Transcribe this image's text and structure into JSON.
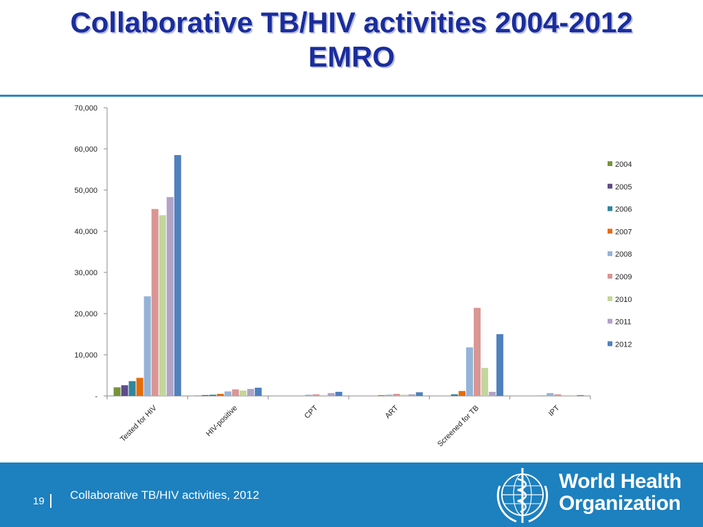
{
  "title": {
    "line1": "Collaborative TB/HIV activities 2004-2012",
    "line2": "EMRO"
  },
  "footer": {
    "page_number": "19",
    "text": "Collaborative TB/HIV activities, 2012",
    "logo_line1": "World Health",
    "logo_line2": "Organization"
  },
  "colors": {
    "title": "#1a2d9c",
    "accent_rule": "#2d86c4",
    "footer_bg": "#1d80bf"
  },
  "chart_data": {
    "type": "bar",
    "categories": [
      "Tested for HIV",
      "HIV-positive",
      "CPT",
      "ART",
      "Screened for TB",
      "IPT"
    ],
    "ylim": [
      0,
      70000
    ],
    "yticks": [
      0,
      10000,
      20000,
      30000,
      40000,
      50000,
      60000,
      70000
    ],
    "ytick_labels": [
      "-",
      "10,000",
      "20,000",
      "30,000",
      "40,000",
      "50,000",
      "60,000",
      "70,000"
    ],
    "legend_position": "right",
    "grid": false,
    "series": [
      {
        "name": "2004",
        "color": "#77933c",
        "values": [
          2100,
          100,
          0,
          0,
          0,
          0
        ]
      },
      {
        "name": "2005",
        "color": "#5f4b8b",
        "values": [
          2600,
          200,
          0,
          0,
          0,
          0
        ]
      },
      {
        "name": "2006",
        "color": "#31859c",
        "values": [
          3600,
          300,
          0,
          0,
          400,
          0
        ]
      },
      {
        "name": "2007",
        "color": "#e46c0a",
        "values": [
          4400,
          500,
          0,
          200,
          1200,
          100
        ]
      },
      {
        "name": "2008",
        "color": "#95b3d7",
        "values": [
          24200,
          1100,
          300,
          300,
          11800,
          700
        ]
      },
      {
        "name": "2009",
        "color": "#d99694",
        "values": [
          45400,
          1600,
          400,
          500,
          21400,
          400
        ]
      },
      {
        "name": "2010",
        "color": "#c3d69b",
        "values": [
          43900,
          1300,
          200,
          300,
          6800,
          200
        ]
      },
      {
        "name": "2011",
        "color": "#b2a2c7",
        "values": [
          48300,
          1700,
          700,
          400,
          1000,
          100
        ]
      },
      {
        "name": "2012",
        "color": "#4f81bd",
        "values": [
          58500,
          2000,
          1000,
          900,
          15000,
          200
        ]
      }
    ]
  }
}
